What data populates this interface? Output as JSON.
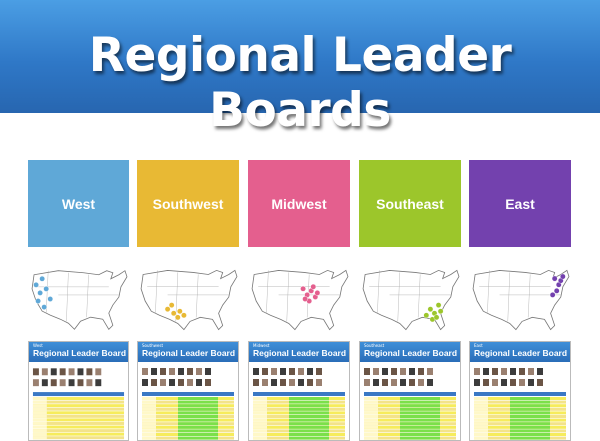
{
  "header": {
    "title": "Regional Leader Boards"
  },
  "regions": [
    {
      "name": "West",
      "color": "#5fa8d7",
      "thumb_label": "West",
      "thumb_title": "Regional Leader Board"
    },
    {
      "name": "Southwest",
      "color": "#e8b934",
      "thumb_label": "Southwest",
      "thumb_title": "Regional Leader Board"
    },
    {
      "name": "Midwest",
      "color": "#e45f8e",
      "thumb_label": "Midwest",
      "thumb_title": "Regional Leader Board"
    },
    {
      "name": "Southeast",
      "color": "#9cc62b",
      "thumb_label": "Southeast",
      "thumb_title": "Regional Leader Board"
    },
    {
      "name": "East",
      "color": "#7341ae",
      "thumb_label": "East",
      "thumb_title": "Regional Leader Board"
    }
  ]
}
